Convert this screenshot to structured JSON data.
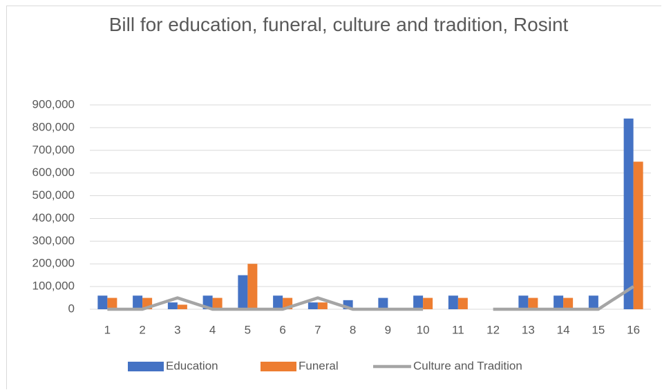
{
  "chart_data": {
    "type": "bar",
    "title": "Bill for education, funeral, culture and tradition, Rosint",
    "categories": [
      "1",
      "2",
      "3",
      "4",
      "5",
      "6",
      "7",
      "8",
      "9",
      "10",
      "11",
      "12",
      "13",
      "14",
      "15",
      "16"
    ],
    "series": [
      {
        "name": "Education",
        "type": "bar",
        "color": "#4472c4",
        "values": [
          60000,
          60000,
          30000,
          60000,
          150000,
          60000,
          30000,
          40000,
          50000,
          60000,
          60000,
          0,
          60000,
          60000,
          60000,
          840000
        ]
      },
      {
        "name": "Funeral",
        "type": "bar",
        "color": "#ed7d31",
        "values": [
          50000,
          50000,
          20000,
          50000,
          200000,
          50000,
          30000,
          0,
          0,
          50000,
          50000,
          0,
          50000,
          50000,
          0,
          650000
        ]
      },
      {
        "name": "Culture and Tradition",
        "type": "line",
        "color": "#a5a5a5",
        "values": [
          0,
          0,
          50000,
          0,
          0,
          0,
          50000,
          0,
          0,
          0,
          null,
          0,
          0,
          0,
          0,
          100000
        ]
      }
    ],
    "ylim": [
      0,
      900000
    ],
    "yticks": [
      0,
      {
        "value": 100000,
        "label": "100,000"
      },
      {
        "value": 200000,
        "label": "200,000"
      },
      {
        "value": 300000,
        "label": "300,000"
      },
      {
        "value": 400000,
        "label": "400,000"
      },
      {
        "value": 500000,
        "label": "500,000"
      },
      {
        "value": 600000,
        "label": "600,000"
      },
      {
        "value": 700000,
        "label": "700,000"
      },
      {
        "value": 800000,
        "label": "800,000"
      },
      {
        "value": 900000,
        "label": "900,000"
      }
    ],
    "grid": true,
    "legend": "bottom"
  }
}
